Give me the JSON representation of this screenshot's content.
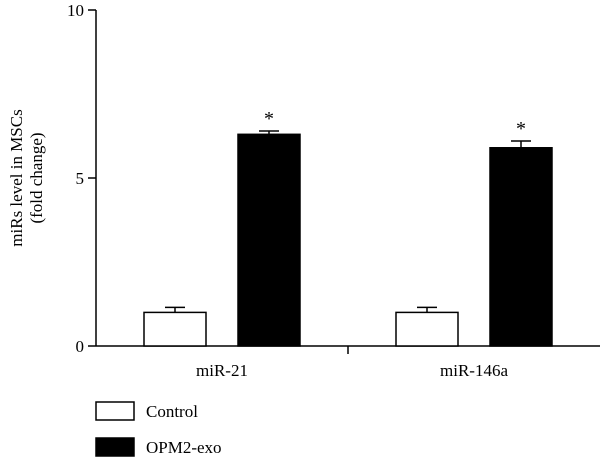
{
  "chart_data": {
    "type": "bar",
    "title": "",
    "xlabel": "",
    "ylabel_lines": [
      "miRs level in MSCs",
      "(fold change)"
    ],
    "ylim": [
      0,
      10
    ],
    "yticks": [
      0,
      5,
      10
    ],
    "categories": [
      "miR-21",
      "miR-146a"
    ],
    "series": [
      {
        "name": "Control",
        "color": "#ffffff",
        "values": [
          1.0,
          1.0
        ],
        "errors": [
          0.15,
          0.15
        ]
      },
      {
        "name": "OPM2-exo",
        "color": "#000000",
        "values": [
          6.3,
          5.9
        ],
        "errors": [
          0.1,
          0.2
        ]
      }
    ],
    "annotations": [
      {
        "category": "miR-21",
        "series": "OPM2-exo",
        "text": "*"
      },
      {
        "category": "miR-146a",
        "series": "OPM2-exo",
        "text": "*"
      }
    ],
    "legend_position": "bottom-left"
  }
}
